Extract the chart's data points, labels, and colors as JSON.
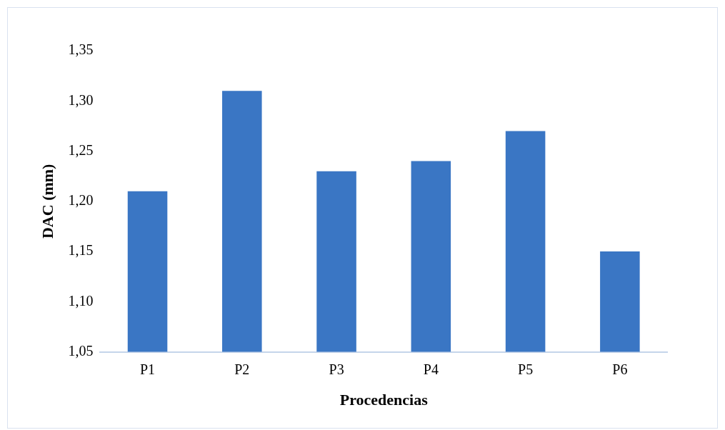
{
  "chart_data": {
    "type": "bar",
    "xlabel": "Procedencias",
    "ylabel": "DAC (mm)",
    "categories": [
      "P1",
      "P2",
      "P3",
      "P4",
      "P5",
      "P6"
    ],
    "values": [
      1.21,
      1.31,
      1.23,
      1.24,
      1.27,
      1.15
    ],
    "color": "#3a76c4",
    "ylim": [
      1.05,
      1.35
    ],
    "yticks": [
      {
        "value": 1.05,
        "label": "1,05"
      },
      {
        "value": 1.1,
        "label": "1,10"
      },
      {
        "value": 1.15,
        "label": "1,15"
      },
      {
        "value": 1.2,
        "label": "1,20"
      },
      {
        "value": 1.25,
        "label": "1,25"
      },
      {
        "value": 1.3,
        "label": "1,30"
      },
      {
        "value": 1.35,
        "label": "1,35"
      }
    ],
    "grid": false,
    "legend": false
  }
}
